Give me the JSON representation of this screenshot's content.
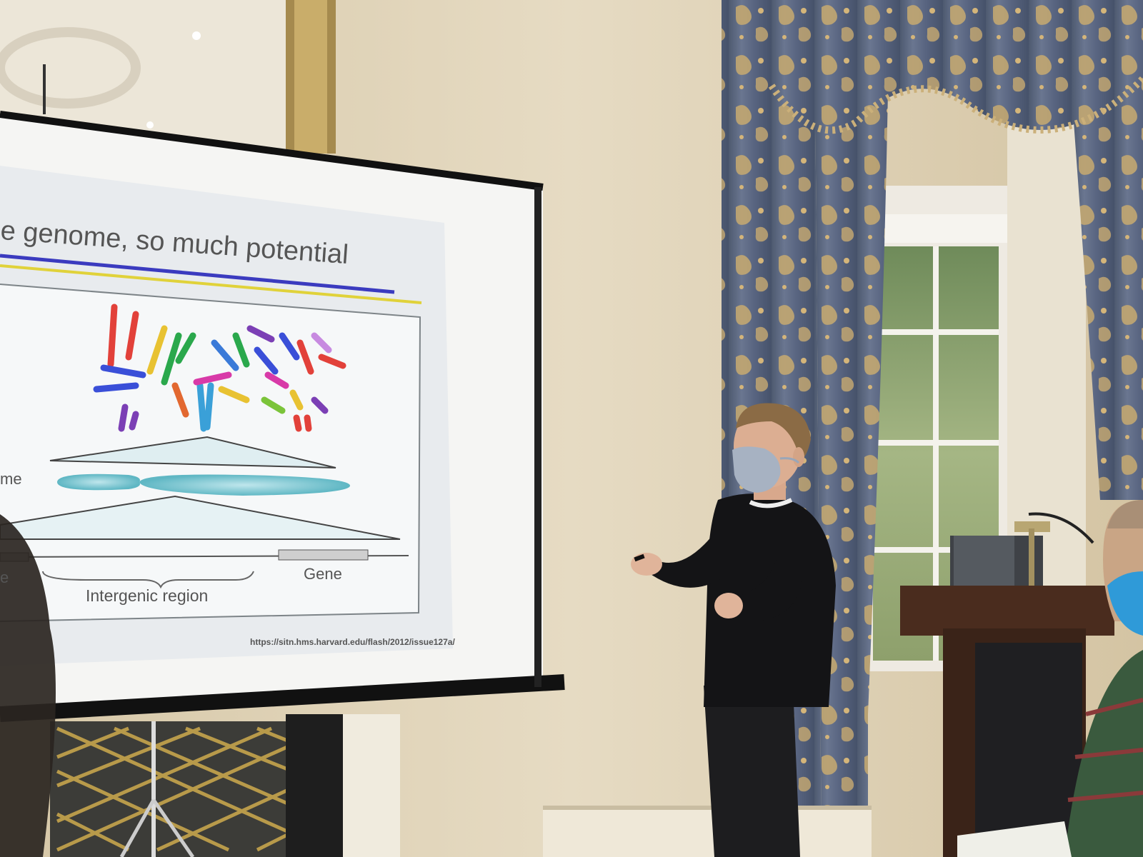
{
  "slide": {
    "title": "e genome, so much potential",
    "label_chromosome_partial": "me",
    "label_gene_partial": "e",
    "label_gene": "Gene",
    "label_intergenic": "Intergenic region",
    "source_url": "https://sitn.hms.harvard.edu/flash/2012/issue127a/"
  },
  "colors": {
    "wall": "#ddd0b4",
    "curtain": "#5f6b82",
    "curtain_pattern": "#c9a96b",
    "slide_bg": "#e9ecef",
    "rule_blue": "#3b3bbf",
    "rule_yellow": "#e0d23a"
  },
  "objects": {
    "presenter": "presenter",
    "face_mask": "face-mask",
    "podium": "podium",
    "laptop": "laptop",
    "window": "window",
    "curtain": "curtain",
    "projector_screen": "projector-screen",
    "fireplace_grille": "fireplace-grille",
    "audience_member": "audience-member"
  }
}
